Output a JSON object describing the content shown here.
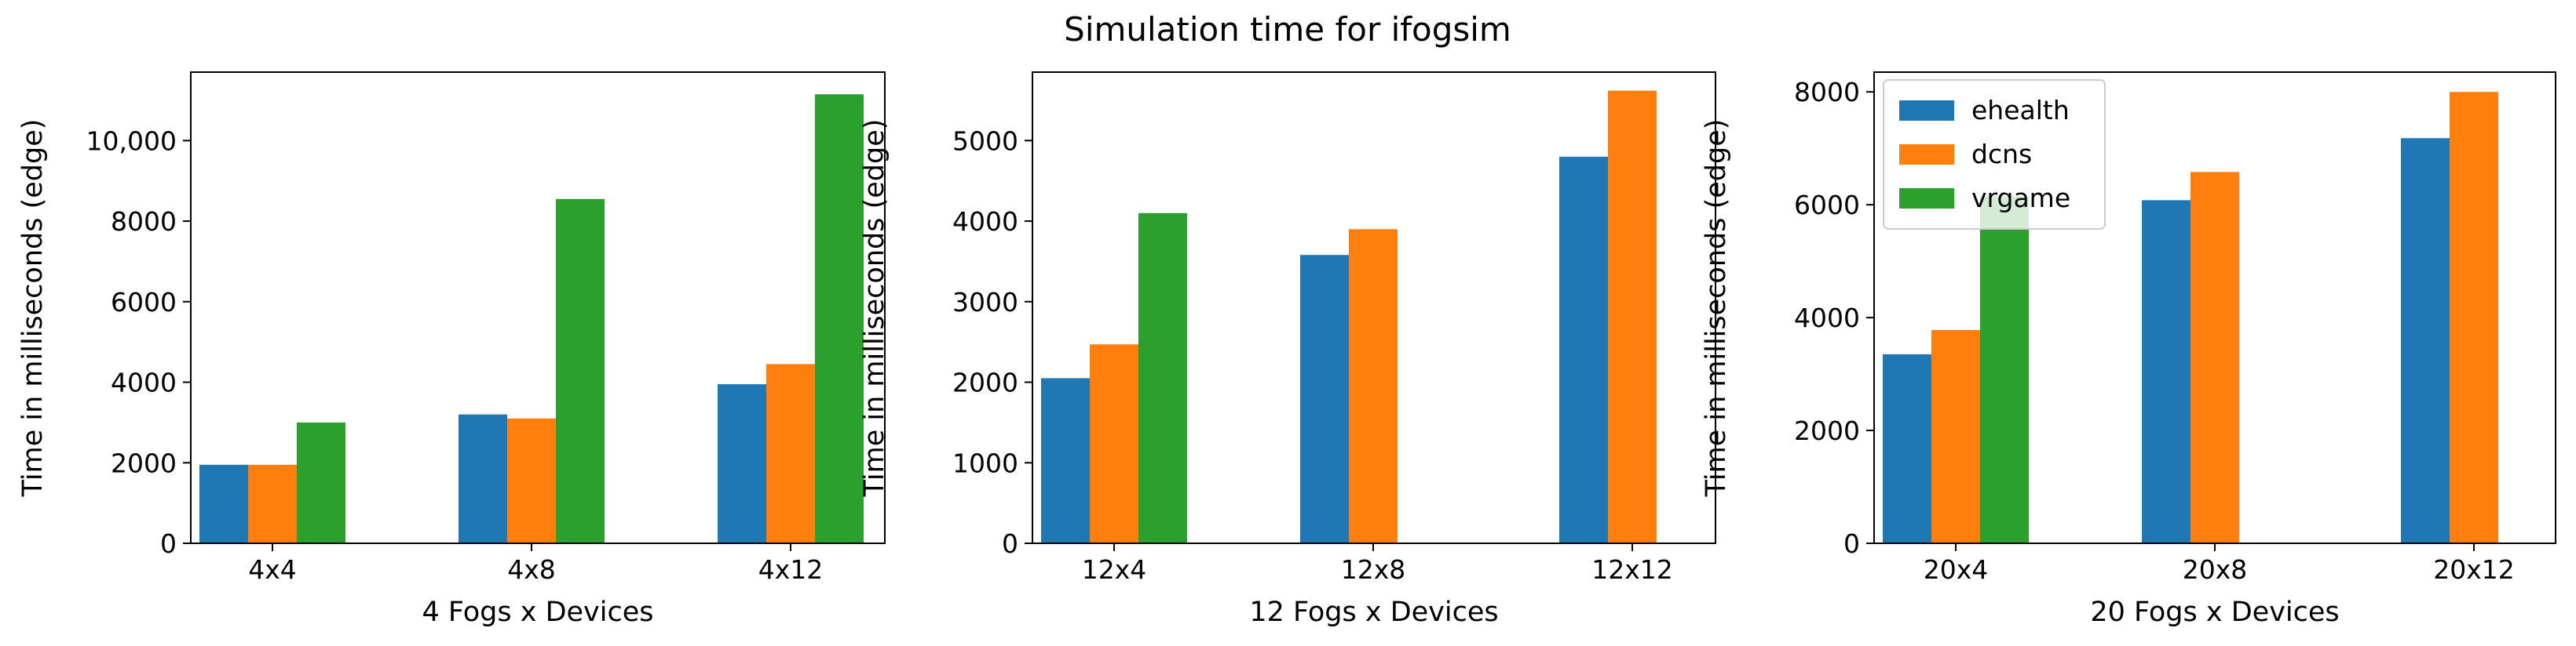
{
  "figure": {
    "title": "Simulation time for ifogsim"
  },
  "series_colors": {
    "ehealth": "#1f77b4",
    "dcns": "#ff7f0e",
    "vrgame": "#2ca02c"
  },
  "chart_data": [
    {
      "type": "bar",
      "title": "",
      "xlabel": "4 Fogs x Devices",
      "ylabel": "Time in milliseconds (edge)",
      "categories": [
        "4x4",
        "4x8",
        "4x12"
      ],
      "ylim": [
        0,
        11700
      ],
      "yticks": [
        0,
        2000,
        4000,
        6000,
        8000,
        10000
      ],
      "ytick_labels": [
        "0",
        "2000",
        "4000",
        "6000",
        "8000",
        "10,000"
      ],
      "grid": false,
      "legend": null,
      "series": [
        {
          "name": "ehealth",
          "values": [
            1950,
            3200,
            3950
          ]
        },
        {
          "name": "dcns",
          "values": [
            1950,
            3100,
            4450
          ]
        },
        {
          "name": "vrgame",
          "values": [
            3000,
            8550,
            11150
          ]
        }
      ]
    },
    {
      "type": "bar",
      "title": "",
      "xlabel": "12 Fogs x Devices",
      "ylabel": "Time in milliseconds (edge)",
      "categories": [
        "12x4",
        "12x8",
        "12x12"
      ],
      "ylim": [
        0,
        5850
      ],
      "yticks": [
        0,
        1000,
        2000,
        3000,
        4000,
        5000
      ],
      "ytick_labels": [
        "0",
        "1000",
        "2000",
        "3000",
        "4000",
        "5000"
      ],
      "grid": false,
      "legend": null,
      "series": [
        {
          "name": "ehealth",
          "values": [
            2050,
            3580,
            4800
          ]
        },
        {
          "name": "dcns",
          "values": [
            2470,
            3900,
            5620
          ]
        },
        {
          "name": "vrgame",
          "values": [
            4100,
            null,
            null
          ]
        }
      ]
    },
    {
      "type": "bar",
      "title": "",
      "xlabel": "20 Fogs x Devices",
      "ylabel": "Time in milliseconds (edge)",
      "categories": [
        "20x4",
        "20x8",
        "20x12"
      ],
      "ylim": [
        0,
        8350
      ],
      "yticks": [
        0,
        2000,
        4000,
        6000,
        8000
      ],
      "ytick_labels": [
        "0",
        "2000",
        "4000",
        "6000",
        "8000"
      ],
      "grid": false,
      "legend": "top-left",
      "series": [
        {
          "name": "ehealth",
          "values": [
            3350,
            6080,
            7180
          ]
        },
        {
          "name": "dcns",
          "values": [
            3780,
            6580,
            8000
          ]
        },
        {
          "name": "vrgame",
          "values": [
            6150,
            null,
            null
          ]
        }
      ]
    }
  ]
}
